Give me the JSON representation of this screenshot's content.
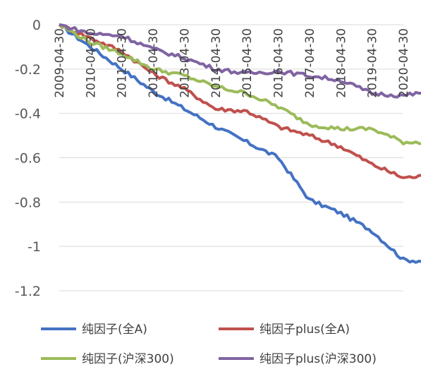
{
  "chart_data": {
    "type": "line",
    "title": "",
    "xlabel": "",
    "ylabel": "",
    "ylim": [
      -1.2,
      0
    ],
    "y_ticks": [
      "0",
      "-0.2",
      "-0.4",
      "-0.6",
      "-0.8",
      "-1",
      "-1.2"
    ],
    "x_ticks": [
      "2009-04-30",
      "2010-04-30",
      "2011-04-30",
      "2012-04-30",
      "2013-04-30",
      "2014-04-30",
      "2015-04-30",
      "2016-04-30",
      "2017-04-30",
      "2018-04-30",
      "2019-04-30",
      "2020-04-30"
    ],
    "grid": "horizontal",
    "legend_position": "bottom",
    "series": [
      {
        "name": "纯因子(全A)",
        "color": "#4472C4",
        "values": [
          0,
          -0.1,
          -0.2,
          -0.3,
          -0.38,
          -0.46,
          -0.53,
          -0.6,
          -0.79,
          -0.85,
          -0.93,
          -1.06,
          -1.07
        ]
      },
      {
        "name": "纯因子plus(全A)",
        "color": "#C0504D",
        "values": [
          0,
          -0.06,
          -0.12,
          -0.22,
          -0.29,
          -0.38,
          -0.39,
          -0.46,
          -0.5,
          -0.55,
          -0.63,
          -0.69,
          -0.68
        ]
      },
      {
        "name": "纯因子(沪深300)",
        "color": "#9BBB59",
        "values": [
          0,
          -0.08,
          -0.13,
          -0.2,
          -0.23,
          -0.28,
          -0.31,
          -0.37,
          -0.45,
          -0.47,
          -0.47,
          -0.53,
          -0.53
        ]
      },
      {
        "name": "纯因子plus(沪深300)",
        "color": "#8064A2",
        "values": [
          0,
          -0.04,
          -0.05,
          -0.11,
          -0.15,
          -0.2,
          -0.22,
          -0.21,
          -0.23,
          -0.25,
          -0.31,
          -0.32,
          -0.3
        ]
      }
    ]
  }
}
